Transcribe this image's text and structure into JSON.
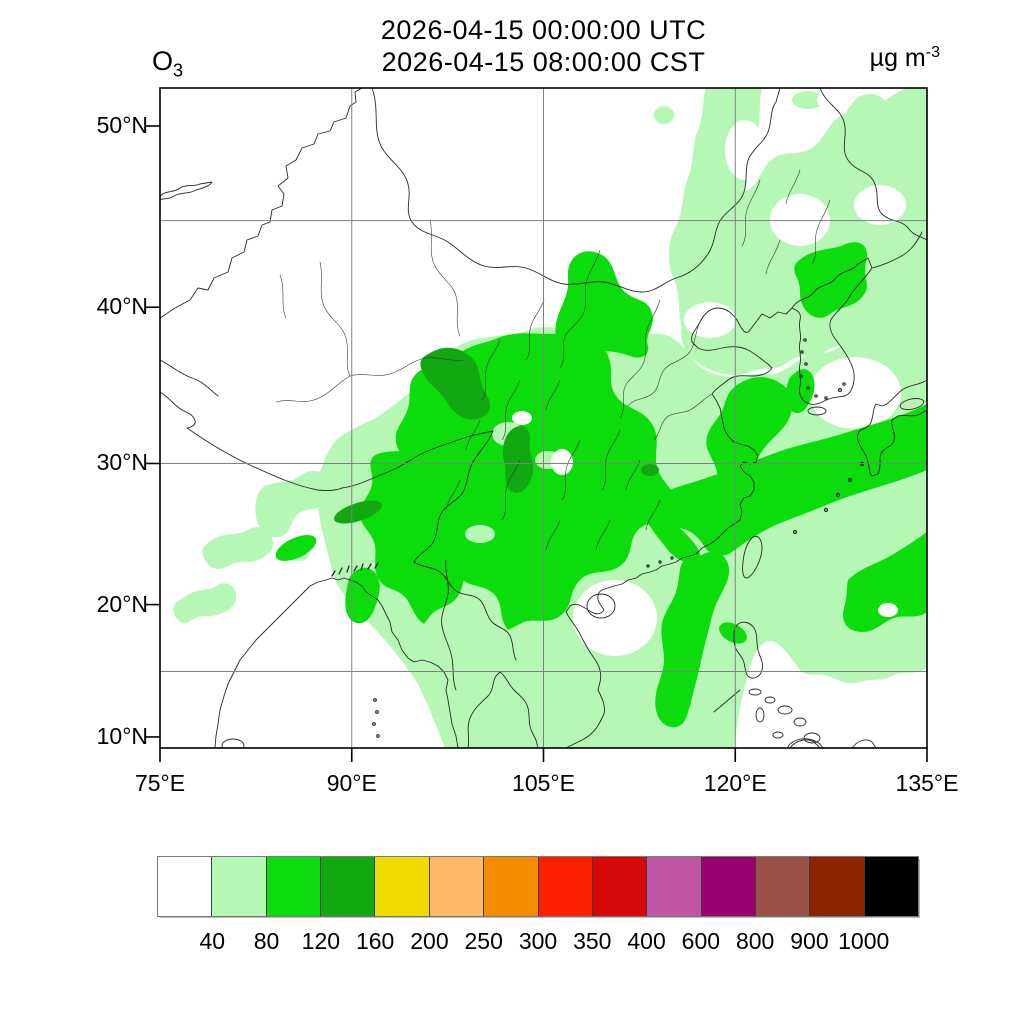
{
  "header": {
    "species": {
      "base": "O",
      "sub": "3"
    },
    "title_line1": "2026-04-15 00:00:00 UTC",
    "title_line2": "2026-04-15 08:00:00 CST",
    "units": {
      "base": "µg m",
      "sup": "-3"
    }
  },
  "axes": {
    "lat_ticks": [
      {
        "label": "50°N",
        "lat": 50
      },
      {
        "label": "40°N",
        "lat": 40
      },
      {
        "label": "30°N",
        "lat": 30
      },
      {
        "label": "20°N",
        "lat": 20
      },
      {
        "label": "10°N",
        "lat": 10
      }
    ],
    "lon_ticks": [
      {
        "label": "75°E",
        "lon": 75
      },
      {
        "label": "90°E",
        "lon": 90
      },
      {
        "label": "105°E",
        "lon": 105
      },
      {
        "label": "120°E",
        "lon": 120
      },
      {
        "label": "135°E",
        "lon": 135
      }
    ],
    "grid_lats": [
      45,
      30,
      15
    ],
    "grid_lons": [
      90,
      105,
      120
    ]
  },
  "colorbar": {
    "labels": [
      "40",
      "80",
      "120",
      "160",
      "200",
      "250",
      "300",
      "350",
      "400",
      "600",
      "800",
      "900",
      "1000"
    ],
    "colors": [
      "#ffffff",
      "#b6f7b6",
      "#0cdc0c",
      "#12a812",
      "#efdb00",
      "#ffb964",
      "#f58c00",
      "#fc2000",
      "#d60909",
      "#be55a5",
      "#9c006e",
      "#9b5148",
      "#8c2500",
      "#000000"
    ]
  },
  "chart_data": {
    "type": "filled_contour_map",
    "title": [
      "2026-04-15 00:00:00 UTC",
      "2026-04-15 08:00:00 CST"
    ],
    "variable": "O3 (ozone)",
    "units": "µg m-3",
    "projection": "mercator",
    "lon_range": [
      75,
      135
    ],
    "lat_range": [
      9.2,
      52
    ],
    "x_tick_labels": [
      "75°E",
      "90°E",
      "105°E",
      "120°E",
      "135°E"
    ],
    "y_tick_labels": [
      "50°N",
      "40°N",
      "30°N",
      "20°N",
      "10°N"
    ],
    "gridlines": {
      "lats": [
        45,
        30,
        15
      ],
      "lons": [
        90,
        105,
        120
      ],
      "color": "#808080"
    },
    "contour_levels": [
      40,
      80,
      120,
      160,
      200,
      250,
      300,
      350,
      400,
      600,
      800,
      900,
      1000
    ],
    "level_colors": [
      "#ffffff",
      "#b6f7b6",
      "#0cdc0c",
      "#12a812",
      "#efdb00",
      "#ffb964",
      "#f58c00",
      "#fc2000",
      "#d60909",
      "#be55a5",
      "#9c006e",
      "#9b5148",
      "#8c2500",
      "#000000"
    ],
    "legend_position": "bottom horizontal label bar",
    "value_summary": [
      {
        "range_ugm3": "below 40",
        "color": "#ffffff",
        "regions": "NW China, Tibet, Kazakhstan, most of Mongolia, Japan Sea, SE corner of Pacific, western India"
      },
      {
        "range_ugm3": "40-80",
        "color": "#b6f7b6",
        "regions": "broad area over central/southern China, Indochina, Bay of Bengal, Yellow Sea, NE China streaks into Mongolia, Korea west coast, western Pacific, scattered patches over India"
      },
      {
        "range_ugm3": "80-120",
        "color": "#0cdc0c",
        "regions": "large cluster over Sichuan-Shaanxi-Henan-Hunan-Guizhou, Myanmar/NE India/Bangladesh, Jilin in NE China, Yellow Sea band, band east of Taiwan toward Kyushu, South China Sea band west of Luzon, patch east of Philippines, small SW-Korea spot"
      },
      {
        "range_ugm3": "120-160",
        "color": "#12a812",
        "regions": "small cores over eastern Sichuan/Chongqing, Yunnan streak, NE India arm"
      },
      {
        "range_ugm3": "above 160",
        "regions": "not present on map"
      }
    ],
    "max_filled_level_visible": "120-160"
  }
}
